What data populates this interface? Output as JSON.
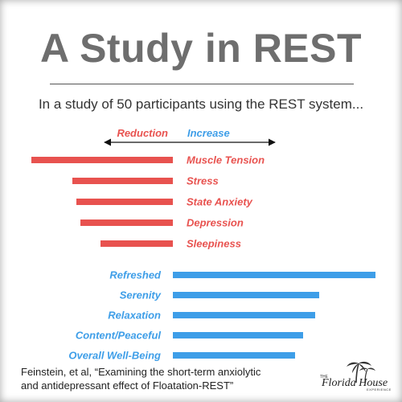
{
  "title": "A Study in REST",
  "subtitle": "In a study of 50 participants using the REST system...",
  "citation": {
    "line1": "Feinstein, et al, “Examining the short-term anxiolytic",
    "line2": "and antidepressant effect of Floatation-REST”"
  },
  "logo": {
    "text": "Florida House",
    "small_top": "THE",
    "small_bottom": "EXPERIENCE"
  },
  "colors": {
    "reduction": "#e8524f",
    "increase": "#3e9ee8",
    "title": "#6e6e6e"
  },
  "chart_data": {
    "type": "bar",
    "orientation": "horizontal-diverging",
    "legend": {
      "reduction_label": "Reduction",
      "increase_label": "Increase"
    },
    "reduction": {
      "categories": [
        "Muscle Tension",
        "Stress",
        "State Anxiety",
        "Depression",
        "Sleepiness"
      ],
      "values": [
        176,
        125,
        120,
        115,
        90
      ]
    },
    "increase": {
      "categories": [
        "Refreshed",
        "Serenity",
        "Relaxation",
        "Content/Peaceful",
        "Overall Well-Being"
      ],
      "values": [
        252,
        182,
        177,
        162,
        152
      ]
    },
    "unit": "relative magnitude (no printed scale)"
  }
}
